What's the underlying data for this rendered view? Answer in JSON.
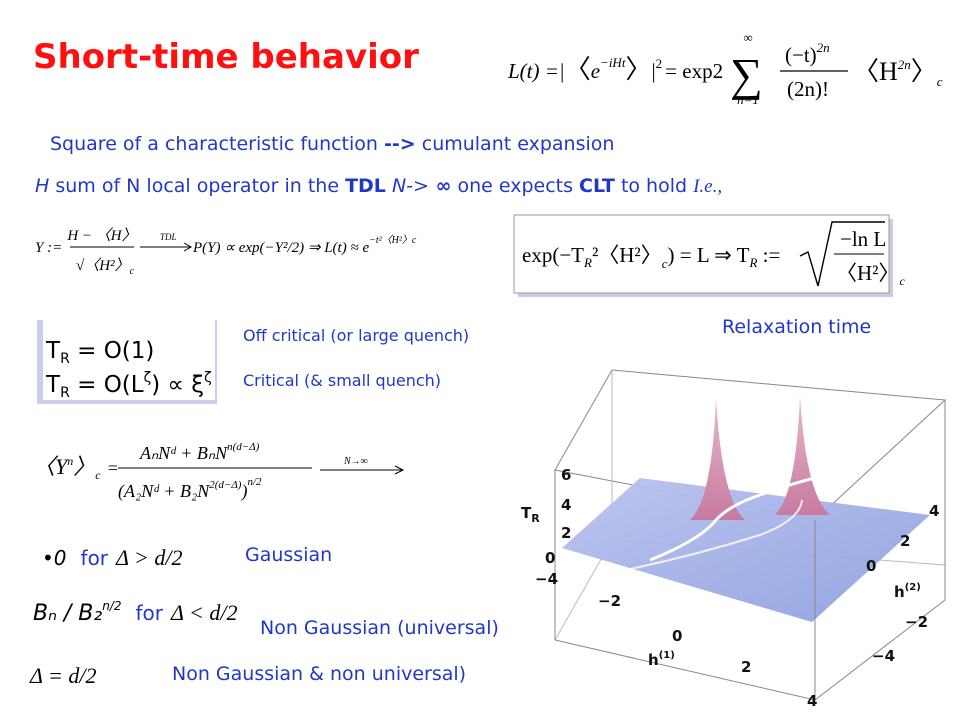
{
  "title": "Short-time behavior",
  "loschmidt": {
    "lhs": "L(t) =|",
    "open": "〈",
    "e": "e",
    "exp": "−iHt",
    "close": "〉",
    "bar": "|",
    "sq": "2",
    "eq": "= exp2",
    "sum": "∑",
    "sum_top": "∞",
    "sum_bottom": "n=1",
    "num": "(−t)",
    "num_exp": "2n",
    "den": "(2n)!",
    "term": "〈H",
    "term_exp": "2n",
    "term_close": "〉",
    "sub": "c"
  },
  "line1": {
    "a": "Square of a characteristic function ",
    "arrow": "-->",
    "b": " cumulant expansion"
  },
  "line2": {
    "h": "H",
    "a": " sum of N local operator in the ",
    "tdl": "TDL",
    "n": "  N->",
    "inf": " ∞",
    "b": " one expects ",
    "clt": "CLT",
    "c": " to hold ",
    "ie": "I.e.,"
  },
  "clt_formula": {
    "y": "Y :=",
    "num": "H − 〈H〉",
    "den": "√〈H²〉",
    "den_sub": "c",
    "tdl": "TDL",
    "rhs": "P(Y) ∝ exp(−Y²/2) ⇒ L(t) ≈ e",
    "rhs_exp": "−t²〈H²〉c"
  },
  "relax_formula": {
    "lhs": "exp(−T",
    "r1": "R",
    "mid": "²〈H²〉",
    "c1": "c",
    "eq": ") = L ⇒ T",
    "r2": "R",
    "def": " :=",
    "num": "−ln L",
    "den": "〈H²〉",
    "c2": "c"
  },
  "scaling": {
    "t1": "T",
    "r1": "R",
    "e1": " = O(1)",
    "t2": "T",
    "r2": "R",
    "e2": " = O(L",
    "z1": "ζ",
    "e3": ") ∝ ξ",
    "z2": "ζ"
  },
  "labels": {
    "off_critical": "Off critical (or large quench)",
    "critical": "Critical (& small quench)",
    "relaxation": "Relaxation time"
  },
  "cumulant": {
    "lhs": "〈Y",
    "n": "n",
    "close": "〉",
    "c": "c",
    "eq": "=",
    "num": "AₙNᵈ + BₙN",
    "num_exp": "n(d−Δ)",
    "den": "(A₂Nᵈ + B₂N",
    "den_exp": "2(d−Δ)",
    "den_close": ")",
    "den_pow": "n/2",
    "arrow": "N→∞"
  },
  "cases": [
    {
      "bullet": "•",
      "value": "0",
      "for": "for",
      "cond": "Δ > d/2",
      "label": "Gaussian"
    },
    {
      "value": "Bₙ / B₂",
      "value_exp": "n/2",
      "for": "for",
      "cond": "Δ < d/2",
      "label": "Non Gaussian (universal)"
    },
    {
      "cond": "Δ = d/2",
      "label": "Non Gaussian & non universal)"
    }
  ],
  "plot": {
    "z_label": "T",
    "z_sub": "R",
    "z_ticks": [
      "6",
      "4",
      "2",
      "0"
    ],
    "h1_label": "h",
    "h1_sup": "(1)",
    "h1_ticks": [
      "−4",
      "−2",
      "0",
      "2",
      "4"
    ],
    "h2_label": "h",
    "h2_sup": "(2)",
    "h2_ticks": [
      "4",
      "2",
      "0",
      "−2",
      "−4"
    ]
  }
}
